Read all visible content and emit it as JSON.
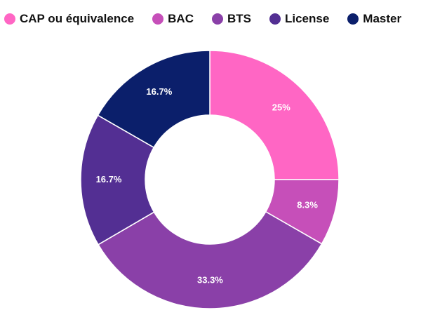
{
  "chart_data": {
    "type": "pie",
    "categories": [
      "CAP ou équivalence",
      "BAC",
      "BTS",
      "License",
      "Master"
    ],
    "values": [
      25,
      8.3,
      33.3,
      16.7,
      16.7
    ],
    "value_labels": [
      "25%",
      "8.3%",
      "33.3%",
      "16.7%",
      "16.7%"
    ],
    "colors": [
      "#ff66c4",
      "#c64fb9",
      "#8a40a8",
      "#532f93",
      "#0b1f6b"
    ],
    "donut": true,
    "legend": "top-left"
  }
}
